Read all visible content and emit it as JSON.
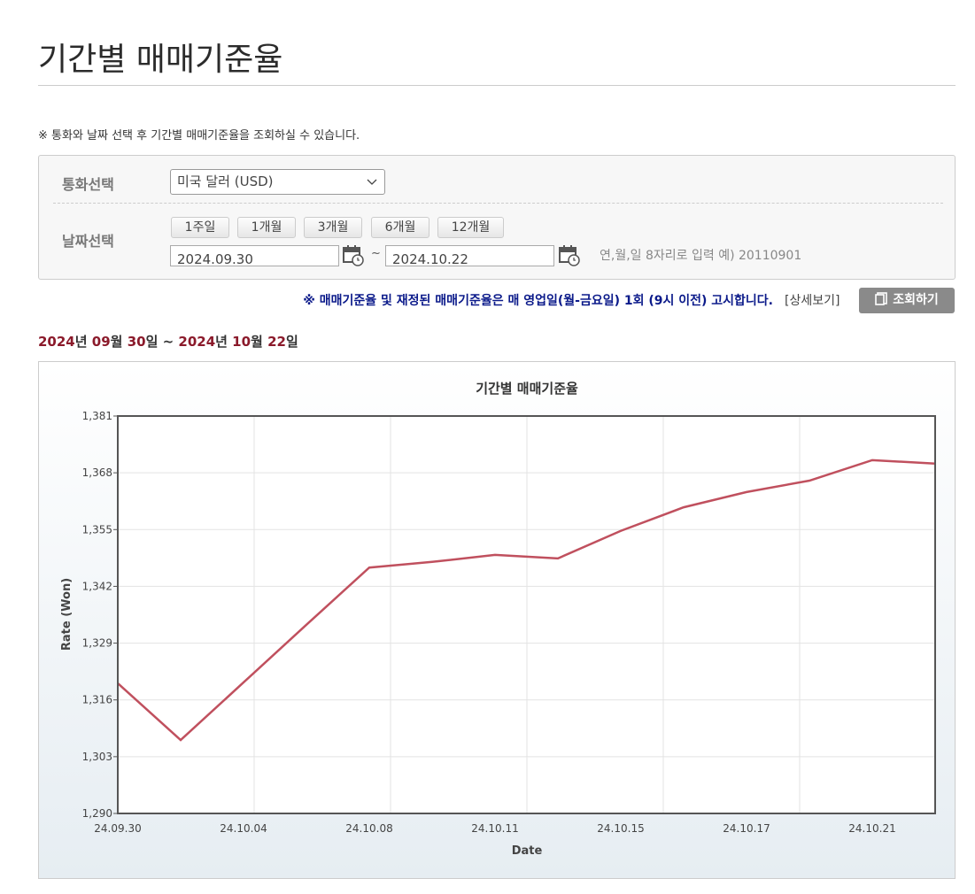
{
  "header": {
    "title": "기간별 매매기준율"
  },
  "notice": "※ 통화와 날짜 선택 후 기간별 매매기준율을 조회하실 수 있습니다.",
  "form": {
    "currency_label": "통화선택",
    "currency_value": "미국 달러 (USD)",
    "date_label": "날짜선택",
    "period_buttons": [
      "1주일",
      "1개월",
      "3개월",
      "6개월",
      "12개월"
    ],
    "start_date": "2024.09.30",
    "separator": "~",
    "end_date": "2024.10.22",
    "hint": "연,월,일 8자리로 입력 예) 20110901"
  },
  "announcement": "※ 매매기준율 및 재정된 매매기준율은 매 영업일(월-금요일) 1회 (9시 이전) 고시합니다.",
  "detail_link": "[상세보기]",
  "search_button": "조회하기",
  "range": [
    "2024",
    "년 ",
    "09",
    "월 ",
    "30",
    "일 ~ ",
    "2024",
    "년 ",
    "10",
    "월 ",
    "22",
    "일"
  ],
  "chart_data": {
    "type": "line",
    "title": "기간별 매매기준율",
    "x_label": "Date",
    "y_label": "Rate (Won)",
    "categories": [
      "24.09.30",
      null,
      "24.10.04",
      null,
      "24.10.08",
      null,
      "24.10.11",
      null,
      "24.10.15",
      null,
      "24.10.17",
      null,
      "24.10.21",
      null
    ],
    "values": [
      1319.8,
      1306.8,
      1320,
      1333.2,
      1346.3,
      1347.6,
      1349.2,
      1348.4,
      1354.7,
      1360.1,
      1363.6,
      1366.2,
      1370.9,
      1370.1
    ],
    "color": "#c0505e",
    "ylim": [
      1290,
      1381
    ],
    "yticks": [
      {
        "value": 1290,
        "label": "1,290"
      },
      {
        "value": 1303,
        "label": "1,303"
      },
      {
        "value": 1316,
        "label": "1,316"
      },
      {
        "value": 1329,
        "label": "1,329"
      },
      {
        "value": 1342,
        "label": "1,342"
      },
      {
        "value": 1355,
        "label": "1,355"
      },
      {
        "value": 1368,
        "label": "1,368"
      },
      {
        "value": 1381,
        "label": "1,381"
      }
    ],
    "grid": true
  }
}
